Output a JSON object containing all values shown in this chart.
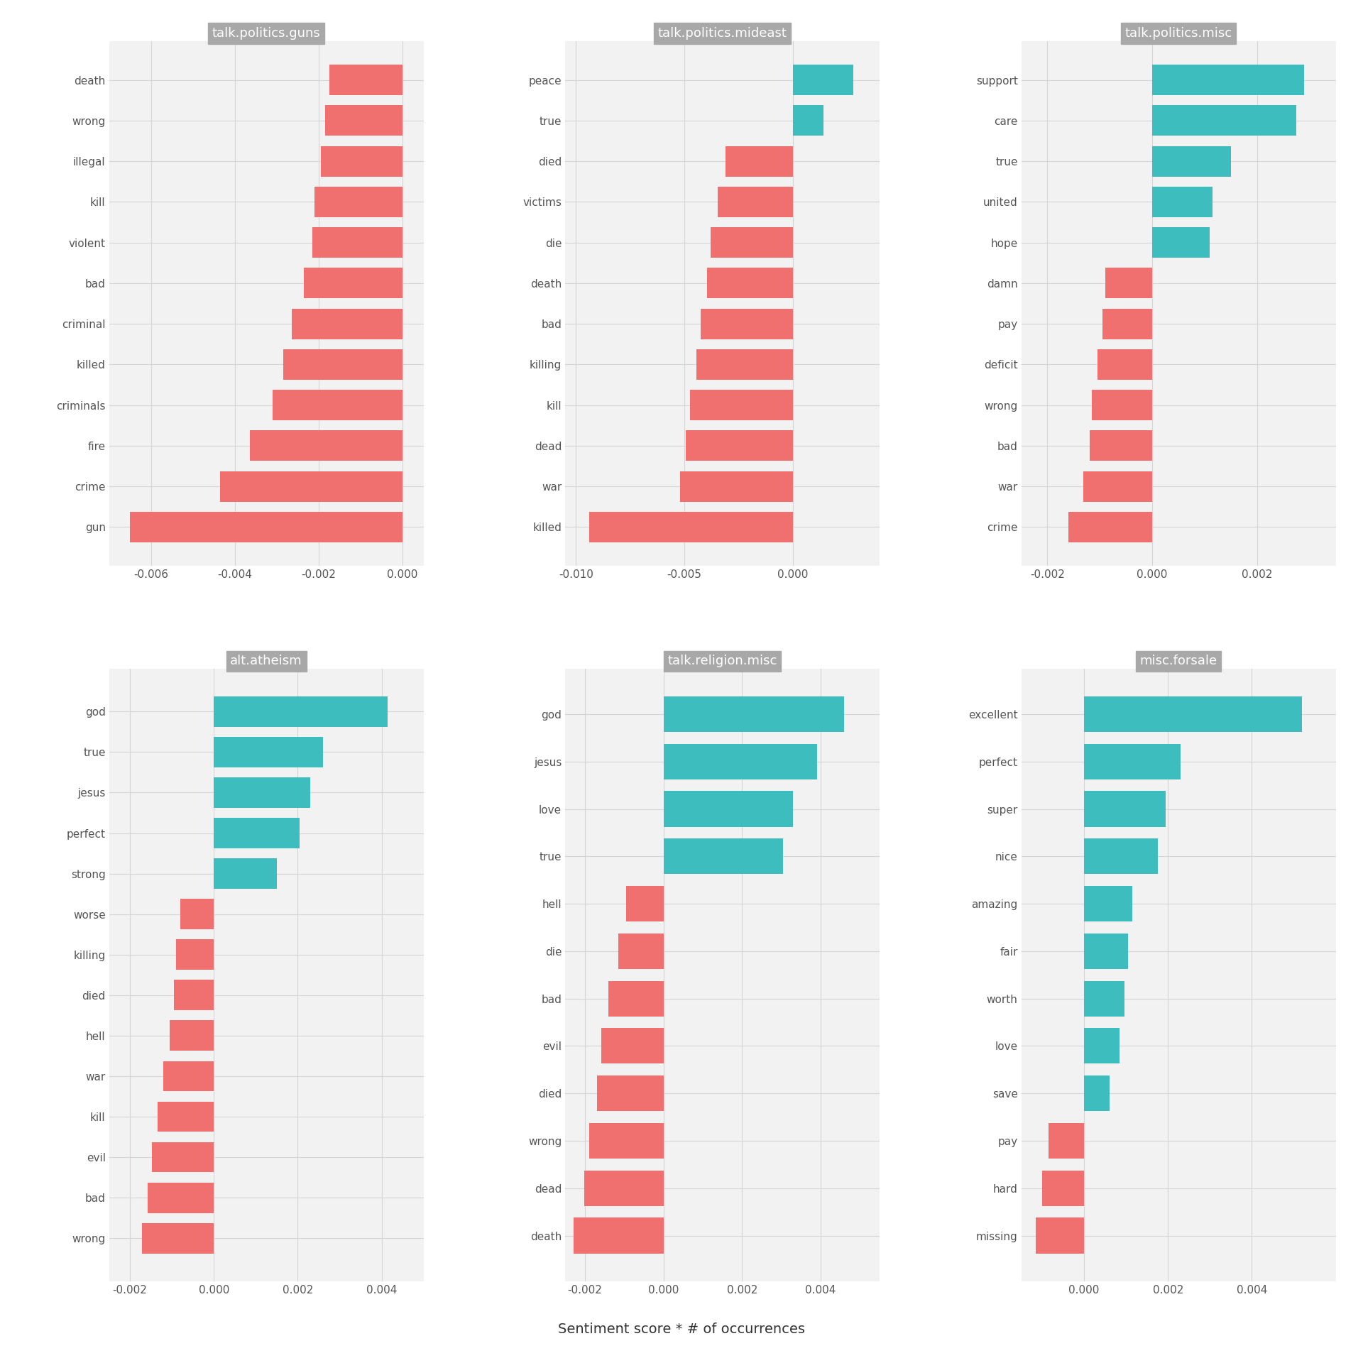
{
  "subplots": [
    {
      "title": "talk.politics.guns",
      "words": [
        "death",
        "wrong",
        "illegal",
        "kill",
        "violent",
        "bad",
        "criminal",
        "killed",
        "criminals",
        "fire",
        "crime",
        "gun"
      ],
      "values": [
        -0.00175,
        -0.00185,
        -0.00195,
        -0.0021,
        -0.00215,
        -0.00235,
        -0.00265,
        -0.00285,
        -0.0031,
        -0.00365,
        -0.00435,
        -0.0065
      ],
      "colors": [
        "#f07070",
        "#f07070",
        "#f07070",
        "#f07070",
        "#f07070",
        "#f07070",
        "#f07070",
        "#f07070",
        "#f07070",
        "#f07070",
        "#f07070",
        "#f07070"
      ],
      "xlim": [
        -0.007,
        0.0005
      ],
      "xticks": [
        -0.006,
        -0.004,
        -0.002,
        0.0
      ]
    },
    {
      "title": "talk.politics.mideast",
      "words": [
        "peace",
        "true",
        "died",
        "victims",
        "die",
        "death",
        "bad",
        "killing",
        "kill",
        "dead",
        "war",
        "killed"
      ],
      "values": [
        0.0028,
        0.0014,
        -0.0031,
        -0.00345,
        -0.0038,
        -0.00395,
        -0.00425,
        -0.00445,
        -0.00475,
        -0.00495,
        -0.0052,
        -0.0094
      ],
      "colors": [
        "#3dbdbd",
        "#3dbdbd",
        "#f07070",
        "#f07070",
        "#f07070",
        "#f07070",
        "#f07070",
        "#f07070",
        "#f07070",
        "#f07070",
        "#f07070",
        "#f07070"
      ],
      "xlim": [
        -0.0105,
        0.004
      ],
      "xticks": [
        -0.01,
        -0.005,
        0.0
      ]
    },
    {
      "title": "talk.politics.misc",
      "words": [
        "support",
        "care",
        "true",
        "united",
        "hope",
        "damn",
        "pay",
        "deficit",
        "wrong",
        "bad",
        "war",
        "crime"
      ],
      "values": [
        0.0029,
        0.00275,
        0.0015,
        0.00115,
        0.0011,
        -0.0009,
        -0.00095,
        -0.00105,
        -0.00115,
        -0.0012,
        -0.00132,
        -0.0016
      ],
      "colors": [
        "#3dbdbd",
        "#3dbdbd",
        "#3dbdbd",
        "#3dbdbd",
        "#3dbdbd",
        "#f07070",
        "#f07070",
        "#f07070",
        "#f07070",
        "#f07070",
        "#f07070",
        "#f07070"
      ],
      "xlim": [
        -0.0025,
        0.0035
      ],
      "xticks": [
        -0.002,
        0.0,
        0.002
      ]
    },
    {
      "title": "alt.atheism",
      "words": [
        "god",
        "true",
        "jesus",
        "perfect",
        "strong",
        "worse",
        "killing",
        "died",
        "hell",
        "war",
        "kill",
        "evil",
        "bad",
        "wrong"
      ],
      "values": [
        0.00415,
        0.0026,
        0.0023,
        0.00205,
        0.0015,
        -0.0008,
        -0.0009,
        -0.00095,
        -0.00105,
        -0.0012,
        -0.00135,
        -0.00148,
        -0.00158,
        -0.00172
      ],
      "colors": [
        "#3dbdbd",
        "#3dbdbd",
        "#3dbdbd",
        "#3dbdbd",
        "#3dbdbd",
        "#f07070",
        "#f07070",
        "#f07070",
        "#f07070",
        "#f07070",
        "#f07070",
        "#f07070",
        "#f07070",
        "#f07070"
      ],
      "xlim": [
        -0.0025,
        0.005
      ],
      "xticks": [
        -0.002,
        0.0,
        0.002,
        0.004
      ]
    },
    {
      "title": "talk.religion.misc",
      "words": [
        "god",
        "jesus",
        "love",
        "true",
        "hell",
        "die",
        "bad",
        "evil",
        "died",
        "wrong",
        "dead",
        "death"
      ],
      "values": [
        0.0046,
        0.0039,
        0.0033,
        0.00305,
        -0.00095,
        -0.00115,
        -0.0014,
        -0.00158,
        -0.00168,
        -0.00188,
        -0.00202,
        -0.00228
      ],
      "colors": [
        "#3dbdbd",
        "#3dbdbd",
        "#3dbdbd",
        "#3dbdbd",
        "#f07070",
        "#f07070",
        "#f07070",
        "#f07070",
        "#f07070",
        "#f07070",
        "#f07070",
        "#f07070"
      ],
      "xlim": [
        -0.0025,
        0.0055
      ],
      "xticks": [
        -0.002,
        0.0,
        0.002,
        0.004
      ]
    },
    {
      "title": "misc.forsale",
      "words": [
        "excellent",
        "perfect",
        "super",
        "nice",
        "amazing",
        "fair",
        "worth",
        "love",
        "save",
        "pay",
        "hard",
        "missing"
      ],
      "values": [
        0.0052,
        0.0023,
        0.00195,
        0.00175,
        0.00115,
        0.00105,
        0.00097,
        0.00085,
        0.0006,
        -0.00085,
        -0.001,
        -0.00115
      ],
      "colors": [
        "#3dbdbd",
        "#3dbdbd",
        "#3dbdbd",
        "#3dbdbd",
        "#3dbdbd",
        "#3dbdbd",
        "#3dbdbd",
        "#3dbdbd",
        "#3dbdbd",
        "#f07070",
        "#f07070",
        "#f07070"
      ],
      "xlim": [
        -0.0015,
        0.006
      ],
      "xticks": [
        0.0,
        0.002,
        0.004
      ]
    }
  ],
  "xlabel": "Sentiment score * # of occurrences",
  "title_bg_color": "#a8a8a8",
  "title_text_color": "white",
  "plot_bg_color": "#f2f2f2",
  "fig_bg_color": "white",
  "grid_color": "#d5d5d5",
  "bar_height": 0.75,
  "positive_color": "#3dbdbd",
  "negative_color": "#f07070",
  "label_fontsize": 13,
  "tick_fontsize": 11,
  "title_fontsize": 13,
  "xlabel_fontsize": 14
}
